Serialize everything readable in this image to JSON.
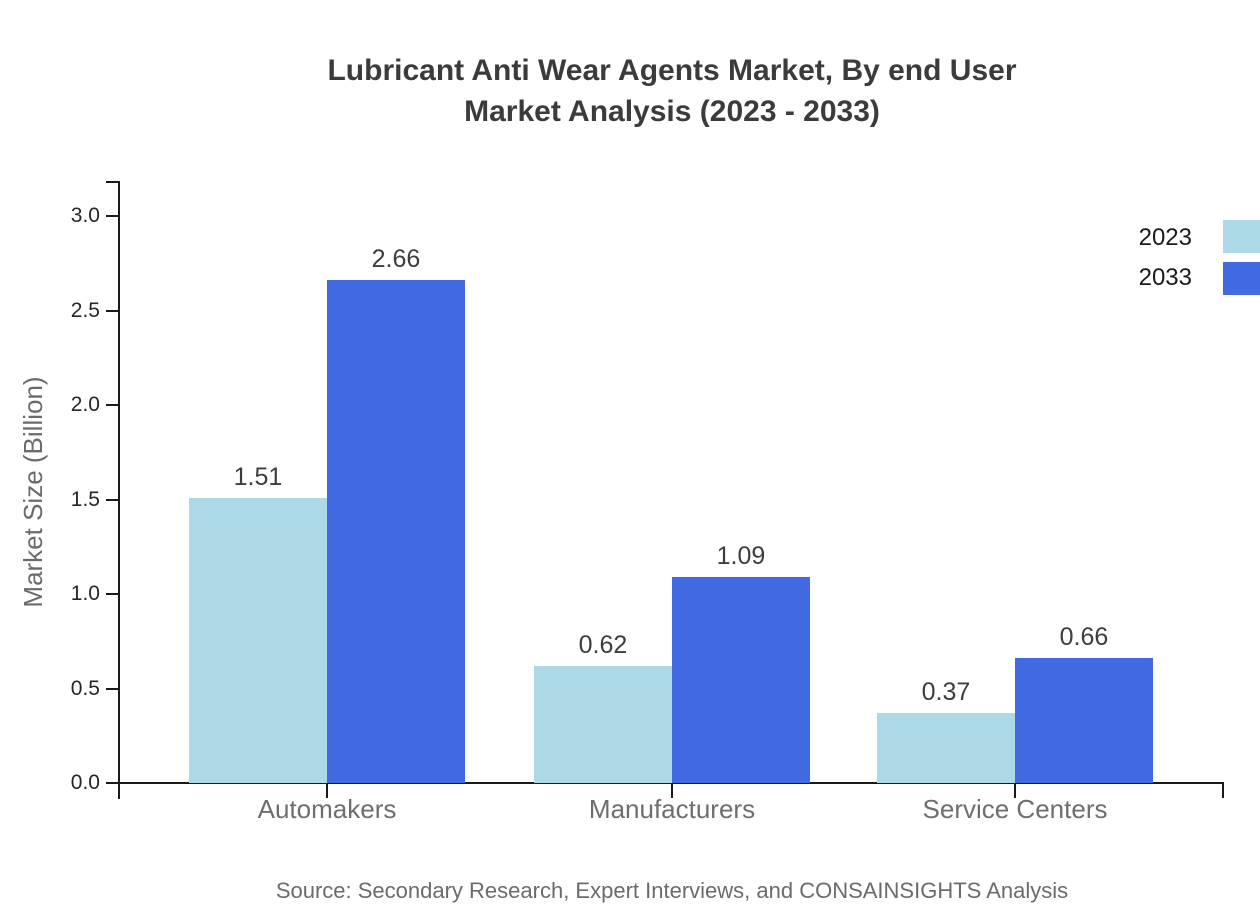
{
  "title": {
    "line1": "Lubricant Anti Wear Agents Market, By end User",
    "line2": "Market Analysis (2023 - 2033)"
  },
  "source": "Source: Secondary Research, Expert Interviews, and CONSAINSIGHTS Analysis",
  "legend": [
    {
      "label": "2023",
      "color": "#ADD8E6"
    },
    {
      "label": "2033",
      "color": "#4169E1"
    }
  ],
  "chart_data": {
    "type": "bar",
    "title": "Lubricant Anti Wear Agents Market, By end User Market Analysis (2023 - 2033)",
    "categories": [
      "Automakers",
      "Manufacturers",
      "Service Centers"
    ],
    "series": [
      {
        "name": "2023",
        "color": "#ADD8E6",
        "values": [
          1.51,
          0.62,
          0.37
        ]
      },
      {
        "name": "2033",
        "color": "#4169E1",
        "values": [
          2.66,
          1.09,
          0.66
        ]
      }
    ],
    "xlabel": "",
    "ylabel": "Market Size (Billion)",
    "ylim": [
      0.0,
      3.0
    ],
    "yticks": [
      0.0,
      0.5,
      1.0,
      1.5,
      2.0,
      2.5,
      3.0
    ],
    "grid": false,
    "legend_position": "top-right",
    "value_labels": true,
    "axis_color": "#1a1a1a",
    "background_color": "#ffffff"
  }
}
